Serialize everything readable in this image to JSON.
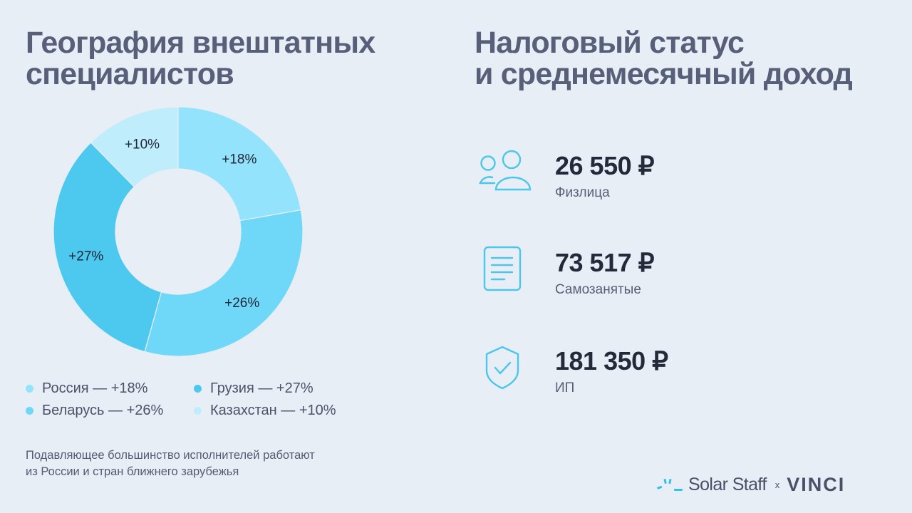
{
  "left": {
    "title_line1": "География внештатных",
    "title_line2": "специалистов",
    "footnote_line1": "Подавляющее большинство исполнителей работают",
    "footnote_line2": "из России и стран ближнего зарубежья"
  },
  "right": {
    "title_line1": "Налоговый статус",
    "title_line2": "и среднемесячный доход",
    "stats": [
      {
        "value": "26 550 ₽",
        "label": "Физлица",
        "icon": "users-icon"
      },
      {
        "value": "73 517 ₽",
        "label": "Самозанятые",
        "icon": "document-icon"
      },
      {
        "value": "181 350 ₽",
        "label": "ИП",
        "icon": "shield-check-icon"
      }
    ],
    "icon_color": "#4cc6e9"
  },
  "legend": [
    {
      "label": "Россия — +18%",
      "color": "#94e3fc"
    },
    {
      "label": "Грузия — +27%",
      "color": "#4dc9f0"
    },
    {
      "label": "Беларусь — +26%",
      "color": "#6fd8f8"
    },
    {
      "label": "Казахстан — +10%",
      "color": "#c0edfc"
    }
  ],
  "brand": {
    "solar": "Solar Staff",
    "x": "x",
    "vinci": "VINCI"
  },
  "chart_data": {
    "type": "pie",
    "subtype": "donut",
    "title": "География внештатных специалистов",
    "categories": [
      "Россия",
      "Беларусь",
      "Грузия",
      "Казахстан"
    ],
    "values": [
      18,
      26,
      27,
      10
    ],
    "labels": [
      "+18%",
      "+26%",
      "+27%",
      "+10%"
    ],
    "colors": [
      "#94e3fc",
      "#6fd8f8",
      "#4dc9f0",
      "#c0edfc"
    ],
    "start_angle": "12 o'clock, clockwise",
    "legend_position": "bottom",
    "units": "%"
  }
}
